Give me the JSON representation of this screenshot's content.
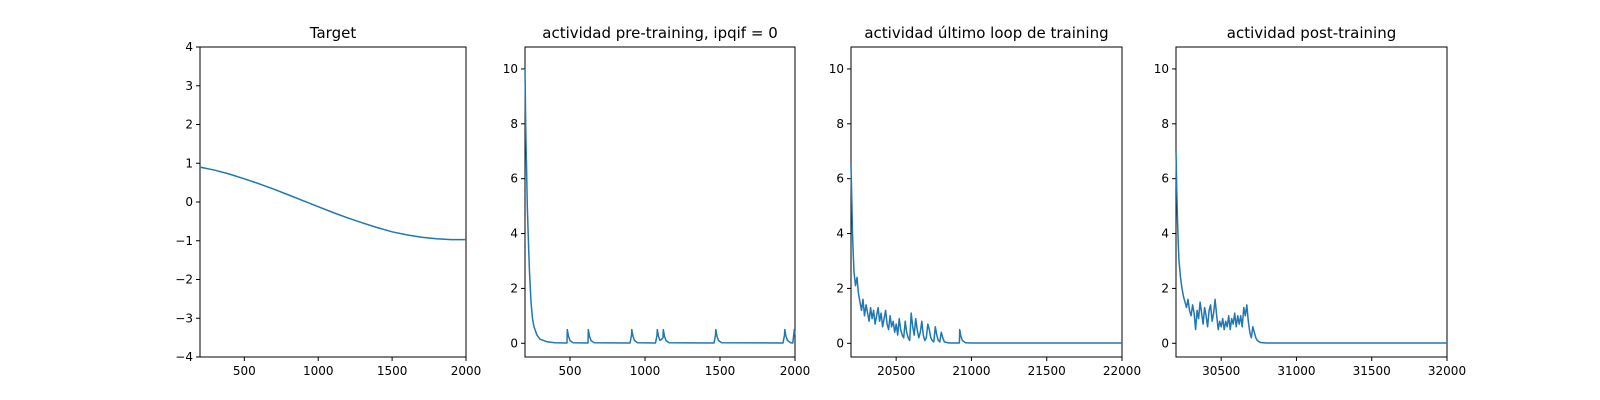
{
  "chart_data": [
    {
      "type": "line",
      "title": "Target",
      "xlabel": "",
      "ylabel": "",
      "xlim": [
        200,
        2000
      ],
      "ylim": [
        -4,
        4
      ],
      "xticks": [
        500,
        1000,
        1500,
        2000
      ],
      "yticks": [
        -4,
        -3,
        -2,
        -1,
        0,
        1,
        2,
        3,
        4
      ],
      "grid": false,
      "series": [
        {
          "color": "#1f77b4",
          "x": [
            200,
            300,
            400,
            500,
            600,
            700,
            800,
            900,
            1000,
            1100,
            1200,
            1300,
            1400,
            1500,
            1600,
            1700,
            1800,
            1900,
            2000
          ],
          "y": [
            0.9,
            0.82,
            0.72,
            0.6,
            0.47,
            0.33,
            0.18,
            0.03,
            -0.12,
            -0.27,
            -0.41,
            -0.54,
            -0.66,
            -0.77,
            -0.85,
            -0.91,
            -0.95,
            -0.97,
            -0.97
          ]
        }
      ]
    },
    {
      "type": "line",
      "title": "actividad pre-training, ipqif = 0",
      "xlabel": "",
      "ylabel": "",
      "xlim": [
        200,
        2000
      ],
      "ylim": [
        -0.5,
        10.8
      ],
      "xticks": [
        500,
        1000,
        1500,
        2000
      ],
      "yticks": [
        0,
        2,
        4,
        6,
        8,
        10
      ],
      "grid": false,
      "series": [
        {
          "color": "#1f77b4",
          "x": [
            200,
            203,
            206,
            210,
            215,
            220,
            225,
            230,
            240,
            250,
            260,
            280,
            300,
            350,
            400,
            480,
            482,
            490,
            500,
            520,
            620,
            622,
            630,
            640,
            660,
            900,
            910,
            912,
            920,
            930,
            950,
            1070,
            1080,
            1082,
            1090,
            1100,
            1120,
            1122,
            1130,
            1140,
            1160,
            1460,
            1470,
            1472,
            1480,
            1490,
            1510,
            1920,
            1930,
            1932,
            1940,
            1950,
            1970,
            1985,
            1995,
            2000
          ],
          "y": [
            10,
            8.5,
            7.5,
            6.5,
            5,
            4.2,
            3.3,
            2.6,
            1.5,
            0.9,
            0.6,
            0.3,
            0.15,
            0.05,
            0.02,
            0.01,
            0.5,
            0.25,
            0.1,
            0.02,
            0.01,
            0.5,
            0.25,
            0.1,
            0.02,
            0.01,
            0.3,
            0.5,
            0.25,
            0.1,
            0.02,
            0.01,
            0.3,
            0.5,
            0.25,
            0.1,
            0.2,
            0.5,
            0.25,
            0.1,
            0.02,
            0.01,
            0.3,
            0.5,
            0.25,
            0.1,
            0.02,
            0.01,
            0.3,
            0.5,
            0.25,
            0.1,
            0.02,
            0.01,
            0.5,
            0.3
          ]
        }
      ]
    },
    {
      "type": "line",
      "title": "actividad último loop de training",
      "xlabel": "",
      "ylabel": "",
      "xlim": [
        20200,
        22000
      ],
      "ylim": [
        -0.5,
        10.8
      ],
      "xticks": [
        20500,
        21000,
        21500,
        22000
      ],
      "yticks": [
        0,
        2,
        4,
        6,
        8,
        10
      ],
      "grid": false,
      "series": [
        {
          "color": "#1f77b4",
          "x": [
            20200,
            20205,
            20210,
            20215,
            20220,
            20230,
            20240,
            20250,
            20260,
            20270,
            20280,
            20290,
            20300,
            20310,
            20320,
            20330,
            20340,
            20350,
            20360,
            20370,
            20380,
            20390,
            20400,
            20410,
            20420,
            20430,
            20440,
            20450,
            20460,
            20470,
            20480,
            20490,
            20500,
            20510,
            20520,
            20530,
            20540,
            20550,
            20560,
            20570,
            20580,
            20590,
            20600,
            20610,
            20620,
            20630,
            20640,
            20650,
            20660,
            20670,
            20680,
            20690,
            20700,
            20710,
            20720,
            20730,
            20740,
            20750,
            20760,
            20770,
            20780,
            20790,
            20800,
            20810,
            20820,
            20840,
            20860,
            20880,
            20900,
            20920,
            20922,
            20930,
            20940,
            20960,
            21000,
            21200,
            21500,
            22000
          ],
          "y": [
            6.5,
            5.2,
            4,
            3.2,
            2.6,
            2.1,
            2.4,
            1.8,
            1.5,
            1.2,
            1.6,
            1.0,
            1.4,
            1.1,
            0.8,
            1.3,
            0.9,
            1.2,
            0.7,
            1.0,
            1.3,
            0.8,
            1.1,
            0.6,
            0.9,
            1.2,
            0.7,
            0.5,
            1.0,
            0.6,
            0.8,
            0.4,
            0.7,
            0.3,
            0.9,
            0.5,
            0.3,
            0.2,
            0.8,
            0.4,
            0.2,
            0.1,
            1.1,
            0.6,
            0.3,
            0.9,
            0.5,
            0.2,
            0.4,
            0.8,
            0.3,
            0.1,
            0.2,
            0.7,
            0.5,
            0.2,
            0.1,
            0.05,
            0.6,
            0.3,
            0.1,
            0.05,
            0.4,
            0.2,
            0.05,
            0.02,
            0.01,
            0.01,
            0.01,
            0.01,
            0.5,
            0.25,
            0.1,
            0.02,
            0.01,
            0.01,
            0.01,
            0.01
          ]
        }
      ]
    },
    {
      "type": "line",
      "title": "actividad post-training",
      "xlabel": "",
      "ylabel": "",
      "xlim": [
        30200,
        32000
      ],
      "ylim": [
        -0.5,
        10.8
      ],
      "xticks": [
        30500,
        31000,
        31500,
        32000
      ],
      "yticks": [
        0,
        2,
        4,
        6,
        8,
        10
      ],
      "grid": false,
      "series": [
        {
          "color": "#1f77b4",
          "x": [
            30200,
            30205,
            30210,
            30215,
            30220,
            30230,
            30240,
            30250,
            30260,
            30270,
            30280,
            30290,
            30300,
            30310,
            30320,
            30330,
            30340,
            30350,
            30360,
            30370,
            30380,
            30390,
            30400,
            30410,
            30420,
            30430,
            30440,
            30450,
            30460,
            30470,
            30480,
            30490,
            30500,
            30510,
            30520,
            30530,
            30540,
            30550,
            30560,
            30570,
            30580,
            30590,
            30600,
            30610,
            30620,
            30630,
            30640,
            30650,
            30660,
            30670,
            30680,
            30690,
            30700,
            30710,
            30720,
            30730,
            30740,
            30760,
            30800,
            31000,
            31500,
            32000
          ],
          "y": [
            7,
            5.5,
            4.5,
            3.6,
            3.0,
            2.4,
            2.0,
            1.7,
            1.5,
            1.3,
            1.6,
            1.2,
            1.0,
            1.4,
            1.1,
            0.5,
            1.2,
            0.9,
            1.5,
            1.1,
            0.7,
            1.3,
            1.0,
            0.6,
            1.2,
            1.4,
            0.8,
            1.1,
            1.6,
            1.0,
            0.5,
            0.8,
            0.6,
            0.9,
            0.5,
            0.8,
            0.6,
            1.0,
            0.5,
            0.9,
            0.7,
            1.1,
            0.6,
            1.0,
            0.7,
            1.0,
            0.6,
            1.3,
            1.0,
            1.4,
            0.8,
            0.4,
            0.2,
            0.6,
            0.4,
            0.2,
            0.1,
            0.03,
            0.01,
            0.01,
            0.01,
            0.01
          ]
        }
      ]
    }
  ]
}
